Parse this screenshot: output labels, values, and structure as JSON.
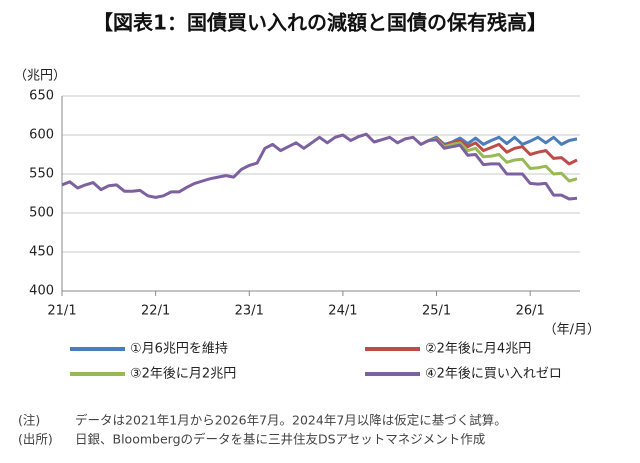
{
  "chart_data": {
    "type": "line",
    "title": "【図表1：国債買い入れの減額と国債の保有残高】",
    "y_unit": "（兆円）",
    "x_unit": "（年/月）",
    "categories": [
      "21/1",
      null,
      null,
      null,
      null,
      null,
      null,
      null,
      null,
      null,
      null,
      null,
      "22/1",
      null,
      null,
      null,
      null,
      null,
      null,
      null,
      null,
      null,
      null,
      null,
      "23/1",
      null,
      null,
      null,
      null,
      null,
      null,
      null,
      null,
      null,
      null,
      null,
      "24/1",
      null,
      null,
      null,
      null,
      null,
      null,
      null,
      null,
      null,
      null,
      null,
      "25/1",
      null,
      null,
      null,
      null,
      null,
      null,
      null,
      null,
      null,
      null,
      null,
      "26/1",
      null,
      null,
      null,
      null,
      null,
      null
    ],
    "series": [
      {
        "name": "①月6兆円を維持",
        "color": "#4a7ebb",
        "values": [
          null,
          null,
          null,
          null,
          null,
          null,
          null,
          null,
          null,
          null,
          null,
          null,
          null,
          null,
          null,
          null,
          null,
          null,
          null,
          null,
          null,
          null,
          null,
          null,
          null,
          null,
          null,
          null,
          null,
          null,
          null,
          null,
          null,
          null,
          null,
          null,
          null,
          null,
          null,
          null,
          null,
          null,
          null,
          null,
          null,
          null,
          null,
          593,
          597,
          588,
          591,
          596,
          589,
          596,
          588,
          593,
          597,
          589,
          597,
          588,
          592,
          597,
          590,
          597,
          588,
          593,
          595
        ]
      },
      {
        "name": "②2年後に月4兆円",
        "color": "#be4b48",
        "values": [
          null,
          null,
          null,
          null,
          null,
          null,
          null,
          null,
          null,
          null,
          null,
          null,
          null,
          null,
          null,
          null,
          null,
          null,
          null,
          null,
          null,
          null,
          null,
          null,
          null,
          null,
          null,
          null,
          null,
          null,
          null,
          null,
          null,
          null,
          null,
          null,
          null,
          null,
          null,
          null,
          null,
          null,
          null,
          null,
          null,
          null,
          null,
          593,
          596,
          587,
          590,
          593,
          585,
          590,
          580,
          584,
          588,
          578,
          583,
          585,
          575,
          578,
          580,
          570,
          571,
          563,
          568
        ]
      },
      {
        "name": "③2年後に月2兆円",
        "color": "#98b954",
        "values": [
          null,
          null,
          null,
          null,
          null,
          null,
          null,
          null,
          null,
          null,
          null,
          null,
          null,
          null,
          null,
          null,
          null,
          null,
          null,
          null,
          null,
          null,
          null,
          null,
          null,
          null,
          null,
          null,
          null,
          null,
          null,
          null,
          null,
          null,
          null,
          null,
          null,
          null,
          null,
          null,
          null,
          null,
          null,
          null,
          null,
          null,
          null,
          593,
          595,
          585,
          588,
          590,
          580,
          583,
          572,
          573,
          575,
          565,
          568,
          569,
          557,
          558,
          560,
          550,
          551,
          541,
          544
        ]
      },
      {
        "name": "④2年後に買い入れゼロ",
        "color": "#7d60a0",
        "values": [
          536,
          540,
          532,
          536,
          539,
          530,
          535,
          536,
          528,
          528,
          529,
          522,
          520,
          522,
          527,
          527,
          533,
          538,
          541,
          544,
          546,
          548,
          546,
          556,
          561,
          564,
          583,
          588,
          580,
          585,
          590,
          583,
          590,
          597,
          590,
          597,
          600,
          593,
          598,
          601,
          591,
          594,
          597,
          590,
          595,
          597,
          588,
          593,
          594,
          583,
          585,
          587,
          574,
          575,
          562,
          563,
          563,
          550,
          550,
          550,
          538,
          537,
          538,
          523,
          523,
          518,
          519
        ]
      }
    ],
    "ylim": [
      400,
      650
    ],
    "yticks": [
      400,
      450,
      500,
      550,
      600,
      650
    ],
    "grid": true,
    "legend": "bottom",
    "notes": [
      {
        "label": "(注)",
        "text": "データは2021年1月から2026年7月。2024年7月以降は仮定に基づく試算。"
      },
      {
        "label": "(出所)",
        "text": "日銀、Bloombergのデータを基に三井住友DSアセットマネジメント作成"
      }
    ]
  }
}
